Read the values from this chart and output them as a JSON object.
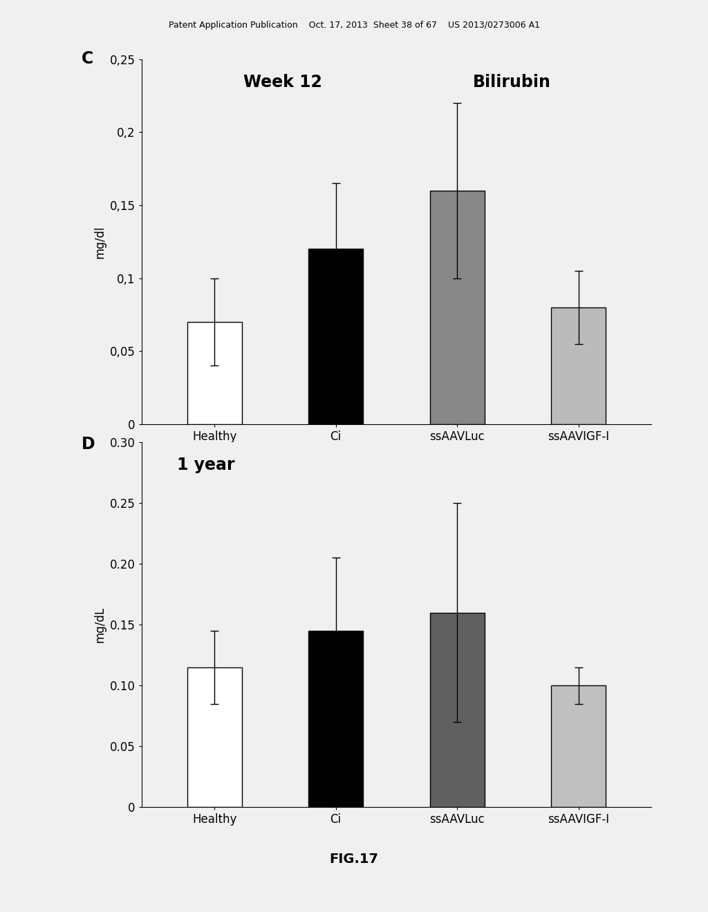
{
  "header_text": "Patent Application Publication    Oct. 17, 2013  Sheet 38 of 67    US 2013/0273006 A1",
  "fig_label": "FIG.17",
  "chart_C": {
    "panel_label": "C",
    "title_left": "Week 12",
    "title_right": "Bilirubin",
    "ylabel": "mg/dl",
    "categories": [
      "Healthy",
      "Ci",
      "ssAAVLuc",
      "ssAAVIGF-I"
    ],
    "values": [
      0.07,
      0.12,
      0.16,
      0.08
    ],
    "errors": [
      0.03,
      0.045,
      0.06,
      0.025
    ],
    "ylim": [
      0,
      0.25
    ],
    "yticks": [
      0,
      0.05,
      0.1,
      0.15,
      0.2,
      0.25
    ],
    "ytick_labels": [
      "0",
      "0,05",
      "0,1",
      "0,15",
      "0,2",
      "0,25"
    ],
    "bar_colors": [
      "white",
      "#000000",
      "#888888",
      "#bbbbbb"
    ],
    "bar_edgecolors": [
      "black",
      "black",
      "black",
      "black"
    ],
    "hatch_patterns": [
      "",
      "",
      "",
      ""
    ]
  },
  "chart_D": {
    "panel_label": "D",
    "title_left": "1 year",
    "ylabel": "mg/dL",
    "categories": [
      "Healthy",
      "Ci",
      "ssAAVLuc",
      "ssAAVIGF-I"
    ],
    "values": [
      0.115,
      0.145,
      0.16,
      0.1
    ],
    "errors": [
      0.03,
      0.06,
      0.09,
      0.015
    ],
    "ylim": [
      0,
      0.3
    ],
    "yticks": [
      0,
      0.05,
      0.1,
      0.15,
      0.2,
      0.25,
      0.3
    ],
    "ytick_labels": [
      "0",
      "0.05",
      "0.10",
      "0.15",
      "0.20",
      "0.25",
      "0.30"
    ],
    "bar_colors": [
      "white",
      "#000000",
      "#606060",
      "#c0c0c0"
    ],
    "bar_edgecolors": [
      "black",
      "black",
      "black",
      "black"
    ],
    "hatch_patterns": [
      "",
      "",
      "",
      ""
    ]
  },
  "background_color": "#f0f0f0",
  "font_size_labels": 12,
  "font_size_title": 17,
  "font_size_axis": 12,
  "bar_width": 0.45,
  "xlim": [
    -0.6,
    3.6
  ]
}
